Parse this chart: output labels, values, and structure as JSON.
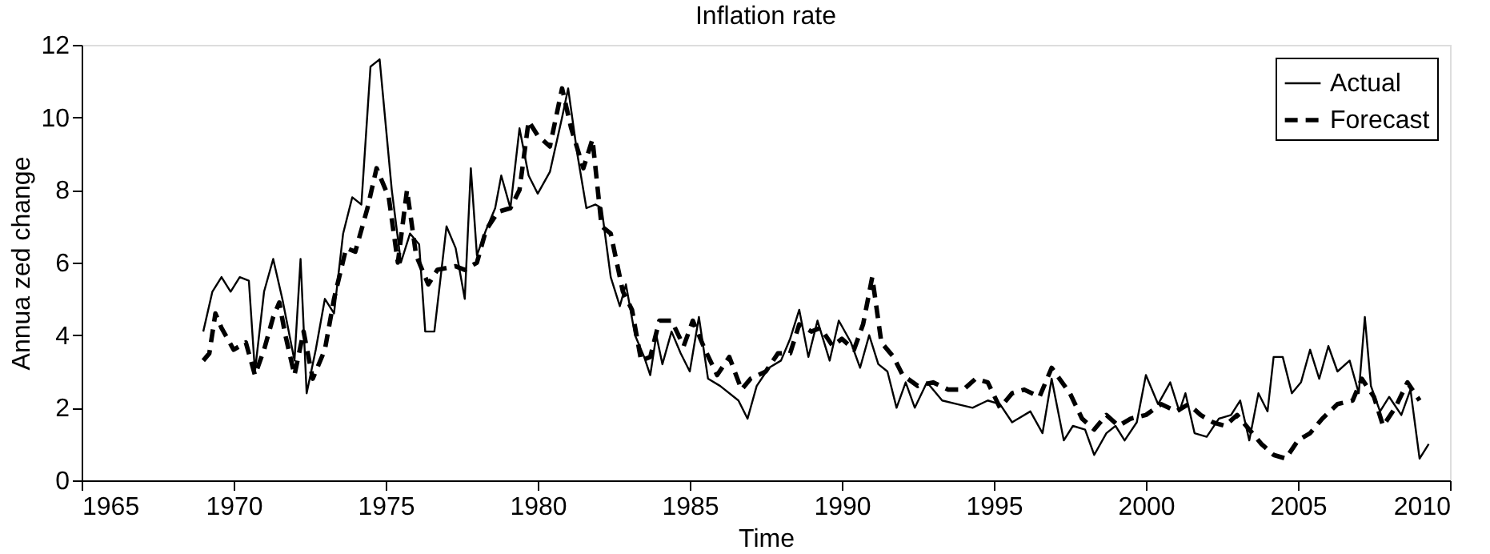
{
  "chart_data": {
    "type": "line",
    "title": "Inflation rate",
    "xlabel": "Time",
    "ylabel": "Annua  zed change",
    "xlim": [
      1965,
      2010
    ],
    "xticks": [
      1965,
      1970,
      1975,
      1980,
      1985,
      1990,
      1995,
      2000,
      2005,
      2010
    ],
    "ylim": [
      0,
      12
    ],
    "yticks": [
      0,
      2,
      4,
      6,
      8,
      10,
      12
    ],
    "grid": false,
    "legend": "top right",
    "marker": "none",
    "series": [
      {
        "name": "Actual",
        "color": "#000000",
        "line_style": "solid",
        "x": [
          1969.0,
          1969.3,
          1969.6,
          1969.9,
          1970.2,
          1970.5,
          1970.7,
          1971.0,
          1971.3,
          1971.6,
          1972.0,
          1972.2,
          1972.4,
          1972.7,
          1973.0,
          1973.3,
          1973.6,
          1973.9,
          1974.2,
          1974.5,
          1974.8,
          1975.2,
          1975.5,
          1975.8,
          1976.1,
          1976.3,
          1976.6,
          1977.0,
          1977.3,
          1977.6,
          1977.8,
          1978.0,
          1978.3,
          1978.6,
          1978.8,
          1979.1,
          1979.4,
          1979.7,
          1980.0,
          1980.4,
          1980.8,
          1981.0,
          1981.3,
          1981.6,
          1981.9,
          1982.1,
          1982.4,
          1982.7,
          1982.9,
          1983.2,
          1983.5,
          1983.7,
          1983.9,
          1984.1,
          1984.4,
          1984.7,
          1985.0,
          1985.3,
          1985.6,
          1986.0,
          1986.6,
          1986.9,
          1987.2,
          1987.6,
          1988.0,
          1988.3,
          1988.6,
          1988.9,
          1989.2,
          1989.6,
          1989.9,
          1990.3,
          1990.6,
          1990.9,
          1991.2,
          1991.5,
          1991.8,
          1992.1,
          1992.4,
          1992.8,
          1993.3,
          1993.8,
          1994.3,
          1994.8,
          1995.2,
          1995.6,
          1996.2,
          1996.6,
          1996.9,
          1997.3,
          1997.6,
          1998.0,
          1998.3,
          1998.7,
          1999.0,
          1999.3,
          1999.7,
          2000.0,
          2000.4,
          2000.8,
          2001.1,
          2001.3,
          2001.6,
          2002.0,
          2002.4,
          2002.8,
          2003.1,
          2003.4,
          2003.7,
          2004.0,
          2004.2,
          2004.5,
          2004.8,
          2005.1,
          2005.4,
          2005.7,
          2006.0,
          2006.3,
          2006.7,
          2007.0,
          2007.2,
          2007.4,
          2007.7,
          2008.0,
          2008.4,
          2008.7,
          2009.0,
          2009.3
        ],
        "values": [
          4.1,
          5.2,
          5.6,
          5.2,
          5.6,
          5.5,
          3.0,
          5.2,
          6.1,
          5.0,
          3.3,
          6.1,
          2.4,
          3.6,
          5.0,
          4.6,
          6.8,
          7.8,
          7.6,
          11.4,
          11.6,
          8.0,
          6.0,
          6.8,
          6.5,
          4.1,
          4.1,
          7.0,
          6.4,
          5.0,
          8.6,
          6.2,
          6.9,
          7.5,
          8.4,
          7.5,
          9.7,
          8.4,
          7.9,
          8.5,
          10.0,
          10.8,
          9.0,
          7.5,
          7.6,
          7.5,
          5.6,
          4.8,
          5.4,
          4.0,
          3.4,
          2.9,
          4.0,
          3.2,
          4.1,
          3.5,
          3.0,
          4.5,
          2.8,
          2.6,
          2.2,
          1.7,
          2.6,
          3.1,
          3.3,
          3.9,
          4.7,
          3.4,
          4.4,
          3.3,
          4.4,
          3.8,
          3.1,
          4.0,
          3.2,
          3.0,
          2.0,
          2.7,
          2.0,
          2.7,
          2.2,
          2.1,
          2.0,
          2.2,
          2.1,
          1.6,
          1.9,
          1.3,
          2.8,
          1.1,
          1.5,
          1.4,
          0.7,
          1.3,
          1.5,
          1.1,
          1.6,
          2.9,
          2.1,
          2.7,
          1.9,
          2.4,
          1.3,
          1.2,
          1.7,
          1.8,
          2.2,
          1.1,
          2.4,
          1.9,
          3.4,
          3.4,
          2.4,
          2.7,
          3.6,
          2.8,
          3.7,
          3.0,
          3.3,
          2.4,
          4.5,
          2.6,
          1.9,
          2.3,
          1.8,
          2.5,
          0.6,
          1.0
        ]
      },
      {
        "name": "Forecast",
        "color": "#000000",
        "line_style": "dashed",
        "x": [
          1969.0,
          1969.2,
          1969.4,
          1969.6,
          1970.0,
          1970.4,
          1970.7,
          1971.0,
          1971.3,
          1971.5,
          1971.7,
          1972.0,
          1972.3,
          1972.6,
          1973.0,
          1973.3,
          1973.7,
          1974.0,
          1974.4,
          1974.7,
          1975.1,
          1975.4,
          1975.7,
          1976.0,
          1976.4,
          1976.7,
          1977.3,
          1977.6,
          1978.0,
          1978.3,
          1978.7,
          1979.1,
          1979.4,
          1979.7,
          1980.0,
          1980.4,
          1980.8,
          1981.1,
          1981.5,
          1981.8,
          1982.1,
          1982.4,
          1982.8,
          1983.1,
          1983.4,
          1983.7,
          1984.0,
          1984.4,
          1984.8,
          1985.1,
          1985.5,
          1985.9,
          1986.3,
          1986.7,
          1987.0,
          1987.5,
          1987.9,
          1988.3,
          1988.6,
          1989.0,
          1989.3,
          1989.7,
          1990.0,
          1990.4,
          1990.7,
          1991.0,
          1991.3,
          1991.7,
          1992.0,
          1992.5,
          1993.0,
          1993.5,
          1994.0,
          1994.4,
          1994.8,
          1995.2,
          1995.6,
          1996.0,
          1996.5,
          1996.9,
          1997.5,
          1997.9,
          1998.3,
          1998.7,
          1999.1,
          1999.5,
          2000.0,
          2000.5,
          2001.0,
          2001.4,
          2001.8,
          2002.2,
          2002.6,
          2003.0,
          2003.4,
          2003.8,
          2004.2,
          2004.6,
          2005.0,
          2005.4,
          2005.8,
          2006.3,
          2006.8,
          2007.1,
          2007.5,
          2007.8,
          2008.2,
          2008.6,
          2009.0
        ],
        "values": [
          3.3,
          3.5,
          4.6,
          4.2,
          3.6,
          3.8,
          2.9,
          3.6,
          4.5,
          4.9,
          4.0,
          2.9,
          4.1,
          2.8,
          3.6,
          5.0,
          6.4,
          6.3,
          7.5,
          8.6,
          7.8,
          6.0,
          8.0,
          6.2,
          5.4,
          5.8,
          5.9,
          5.8,
          6.0,
          6.9,
          7.4,
          7.5,
          8.0,
          9.9,
          9.5,
          9.2,
          10.8,
          9.7,
          8.6,
          9.4,
          7.0,
          6.8,
          5.2,
          4.7,
          3.3,
          3.4,
          4.4,
          4.4,
          3.7,
          4.4,
          3.6,
          2.9,
          3.4,
          2.5,
          2.8,
          3.0,
          3.5,
          3.5,
          4.3,
          4.1,
          4.2,
          3.7,
          3.9,
          3.6,
          4.3,
          5.6,
          3.8,
          3.4,
          2.9,
          2.6,
          2.7,
          2.5,
          2.5,
          2.8,
          2.7,
          2.0,
          2.4,
          2.5,
          2.3,
          3.1,
          2.4,
          1.7,
          1.4,
          1.8,
          1.5,
          1.7,
          1.8,
          2.1,
          1.9,
          2.1,
          1.8,
          1.6,
          1.5,
          1.8,
          1.4,
          1.0,
          0.7,
          0.6,
          1.1,
          1.3,
          1.7,
          2.1,
          2.2,
          2.8,
          2.3,
          1.5,
          2.0,
          2.7,
          2.2
        ]
      }
    ]
  }
}
